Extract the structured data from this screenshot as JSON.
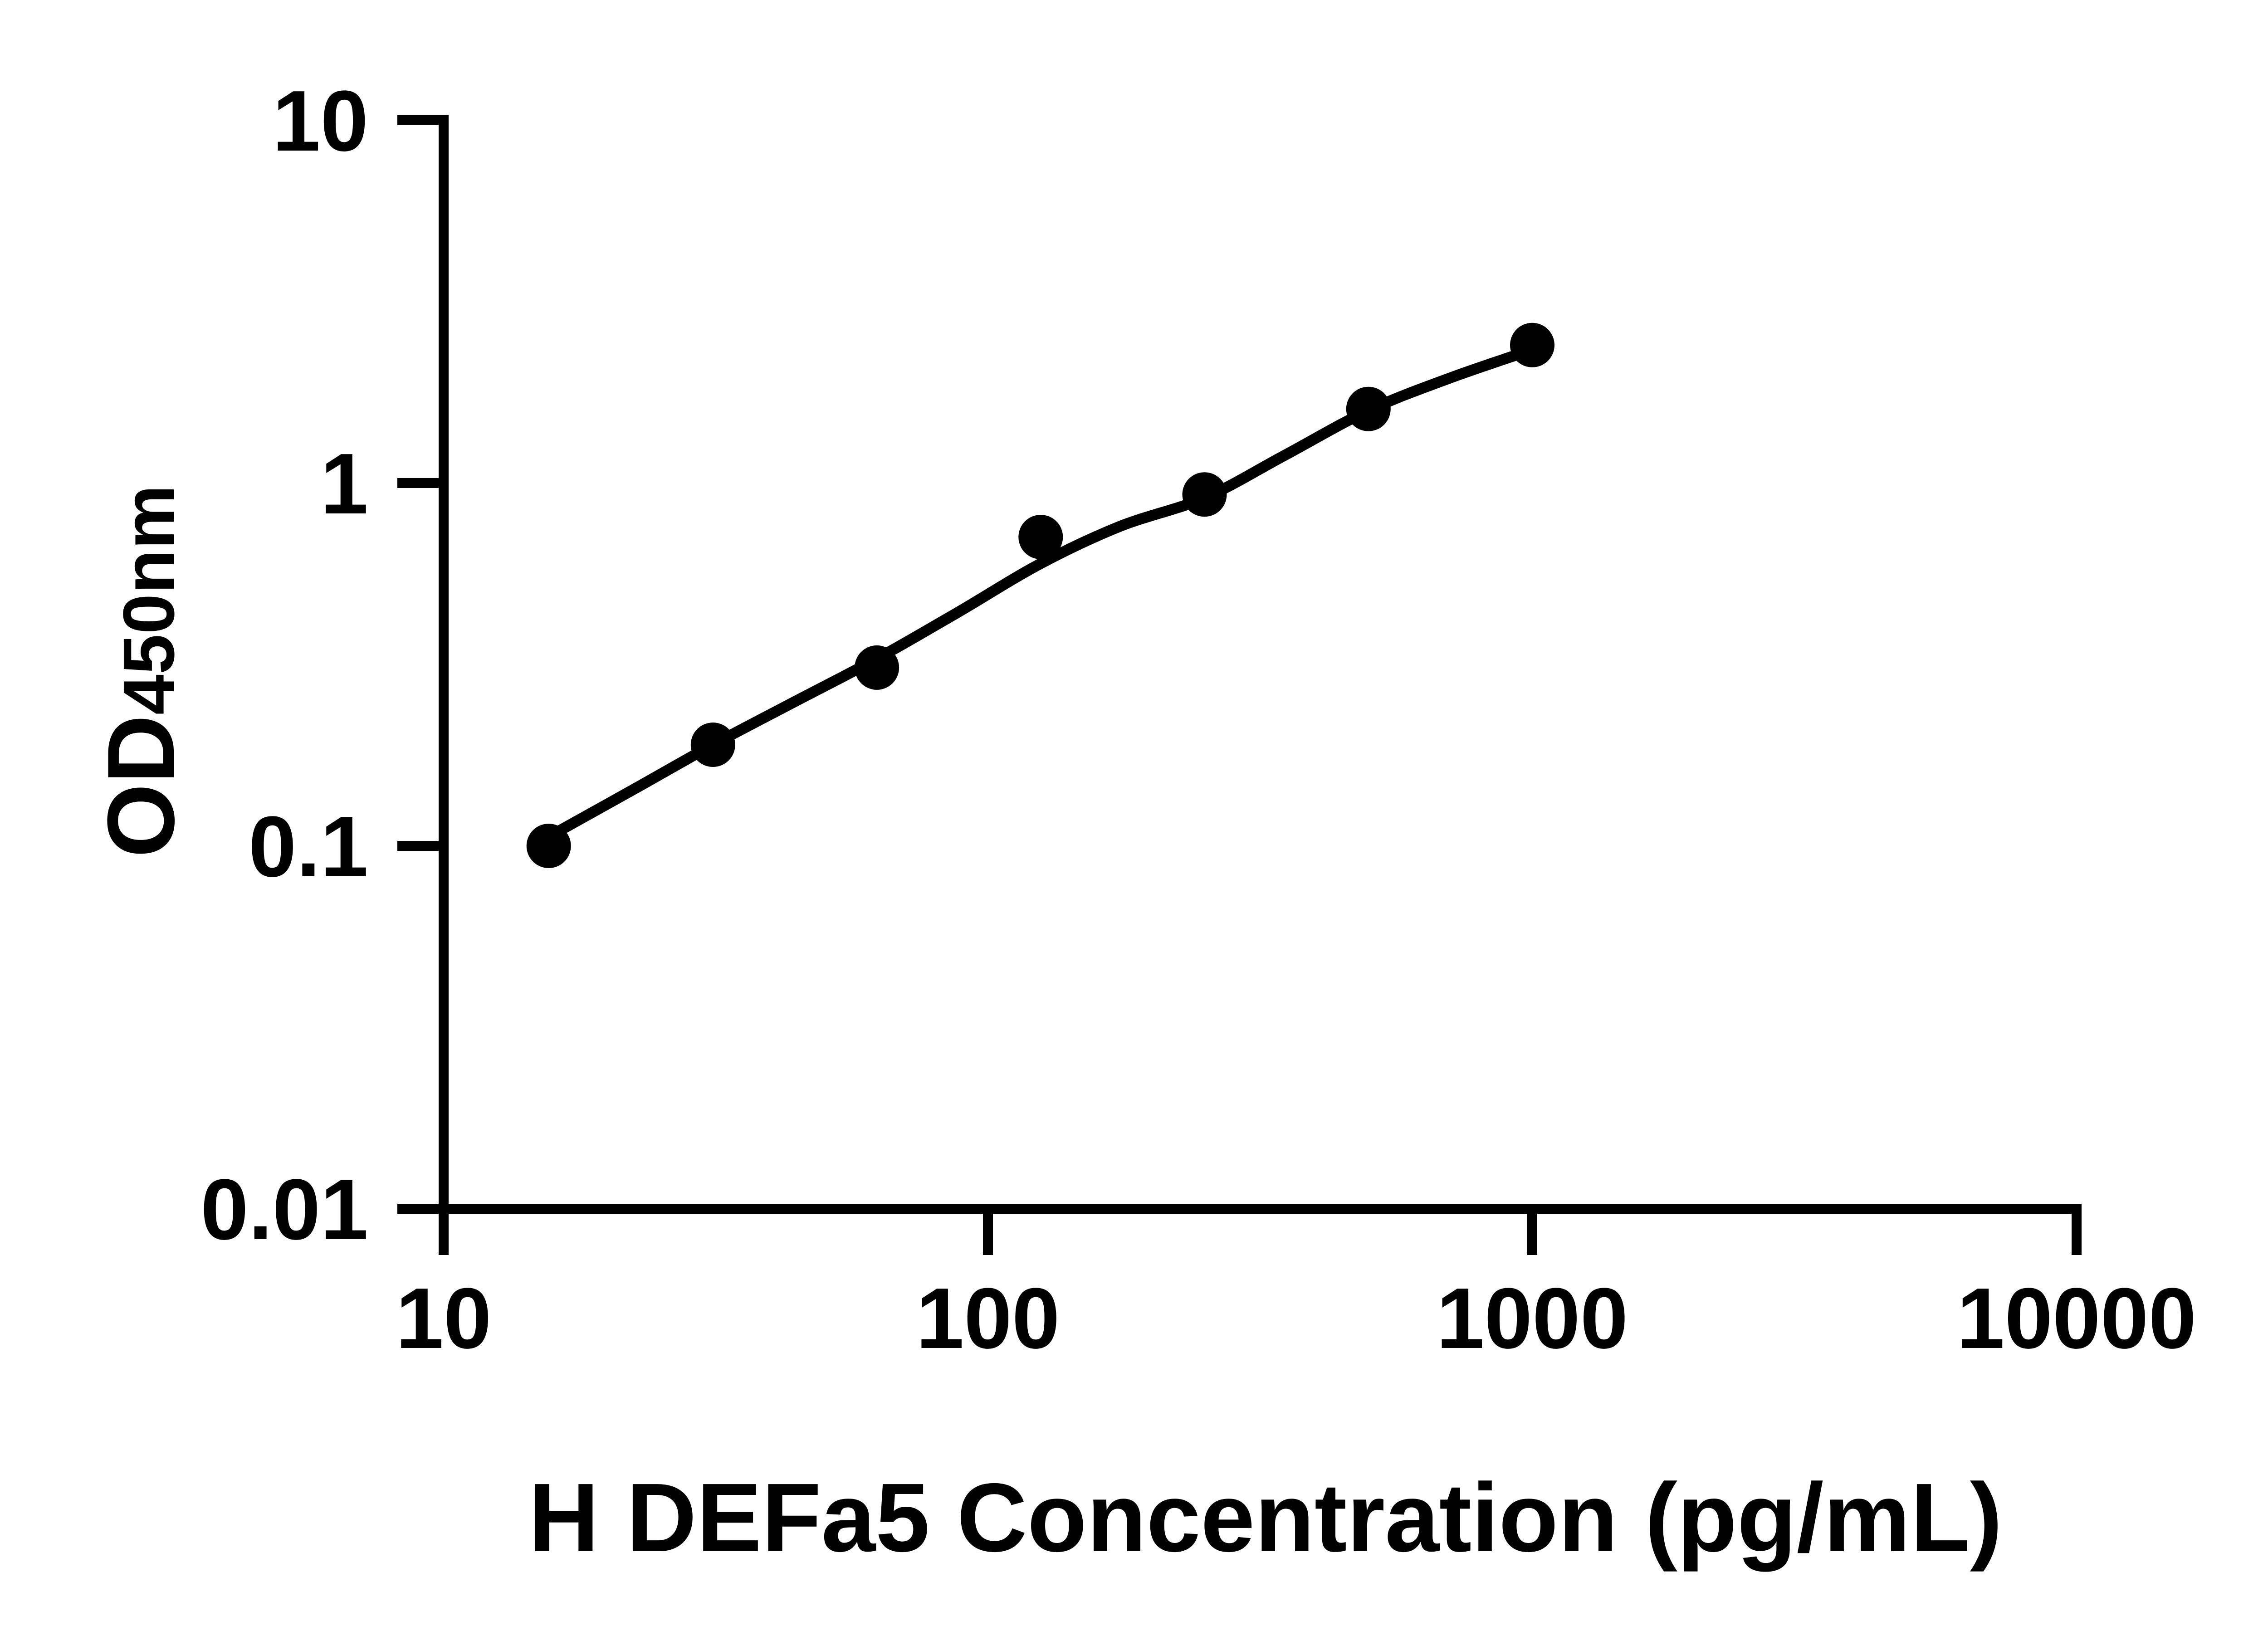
{
  "figure": {
    "background_color": "#ffffff",
    "ink_color": "#000000"
  },
  "chart_data": {
    "type": "scatter",
    "title": "",
    "xlabel": "H DEFa5 Concentration (pg/mL)",
    "ylabel": "OD",
    "ylabel_sub": "450nm",
    "x_scale": "log10",
    "y_scale": "log10",
    "xlim": [
      10,
      10000
    ],
    "ylim": [
      0.01,
      10
    ],
    "grid": false,
    "legend": null,
    "x_ticks": [
      {
        "value": 10,
        "label": "10"
      },
      {
        "value": 100,
        "label": "100"
      },
      {
        "value": 1000,
        "label": "1000"
      },
      {
        "value": 10000,
        "label": "10000"
      }
    ],
    "y_ticks": [
      {
        "value": 10,
        "label": "10"
      },
      {
        "value": 1,
        "label": "1"
      },
      {
        "value": 0.1,
        "label": "0.1"
      },
      {
        "value": 0.01,
        "label": "0.01"
      }
    ],
    "series": [
      {
        "name": "standard-points",
        "kind": "scatter",
        "marker": "filled-circle",
        "color": "#000000",
        "points": [
          {
            "x": 15.6,
            "y": 0.1
          },
          {
            "x": 31.25,
            "y": 0.19
          },
          {
            "x": 62.5,
            "y": 0.31
          },
          {
            "x": 125,
            "y": 0.71
          },
          {
            "x": 250,
            "y": 0.93
          },
          {
            "x": 500,
            "y": 1.6
          },
          {
            "x": 1000,
            "y": 2.4
          }
        ]
      },
      {
        "name": "fit-curve",
        "kind": "line",
        "color": "#000000",
        "points": [
          {
            "x": 15.6,
            "y": 0.106
          },
          {
            "x": 22.5,
            "y": 0.144
          },
          {
            "x": 31.25,
            "y": 0.19
          },
          {
            "x": 44,
            "y": 0.249
          },
          {
            "x": 62.5,
            "y": 0.328
          },
          {
            "x": 88,
            "y": 0.44
          },
          {
            "x": 125,
            "y": 0.6
          },
          {
            "x": 175,
            "y": 0.76
          },
          {
            "x": 250,
            "y": 0.91
          },
          {
            "x": 350,
            "y": 1.19
          },
          {
            "x": 500,
            "y": 1.585
          },
          {
            "x": 711,
            "y": 1.955
          },
          {
            "x": 1000,
            "y": 2.33
          }
        ]
      }
    ]
  }
}
